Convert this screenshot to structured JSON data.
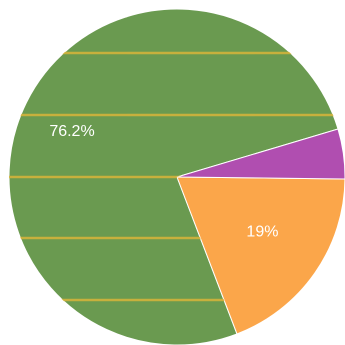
{
  "chart_data": {
    "type": "pie",
    "categories": [
      "",
      "",
      ""
    ],
    "values": [
      76.2,
      19,
      4.8
    ],
    "labels": [
      "76.2%",
      "19%",
      ""
    ],
    "colors": [
      "#6a9a50",
      "#fba64a",
      "#b04eb0"
    ],
    "stripe_color": "#d8b43a",
    "legend": "none"
  }
}
